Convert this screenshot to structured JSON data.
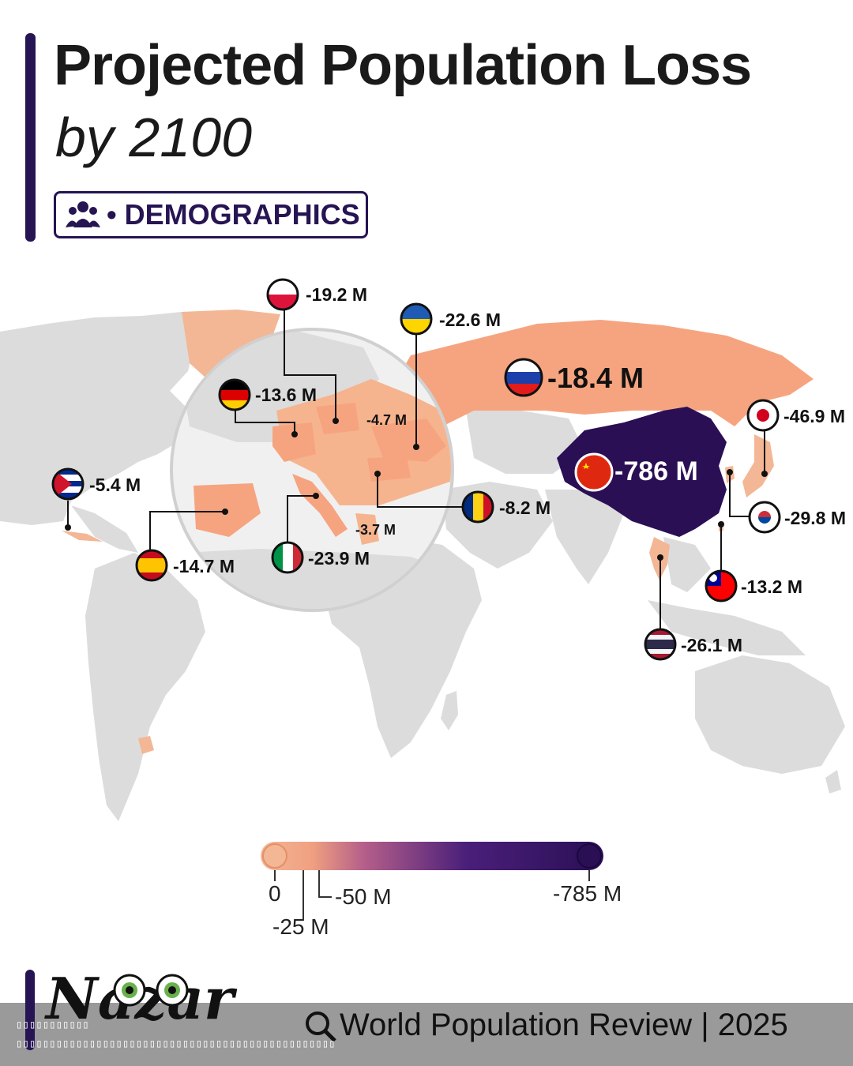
{
  "header": {
    "title": "Projected Population Loss",
    "subtitle": "by 2100",
    "tag": "• DEMOGRAPHICS"
  },
  "colors": {
    "accent": "#261453",
    "light": "#f3b795",
    "mid": "#f0a080",
    "dark": "#2a0f55",
    "land": "#dcdcdc"
  },
  "map_data": {
    "countries": [
      {
        "name": "Poland",
        "value": "-19.2 M",
        "flag": "poland-flag-icon"
      },
      {
        "name": "Ukraine",
        "value": "-22.6 M",
        "flag": "ukraine-flag-icon"
      },
      {
        "name": "Germany",
        "value": "-13.6 M",
        "flag": "germany-flag-icon"
      },
      {
        "name": "Russia",
        "value": "-18.4 M",
        "flag": "russia-flag-icon"
      },
      {
        "name": "Japan",
        "value": "-46.9 M",
        "flag": "japan-flag-icon"
      },
      {
        "name": "China",
        "value": "-786 M",
        "flag": "china-flag-icon"
      },
      {
        "name": "Cuba",
        "value": "-5.4 M",
        "flag": "cuba-flag-icon"
      },
      {
        "name": "Romania",
        "value": "-8.2 M",
        "flag": "romania-flag-icon"
      },
      {
        "name": "South Korea",
        "value": "-29.8 M",
        "flag": "south-korea-flag-icon"
      },
      {
        "name": "Spain",
        "value": "-14.7 M",
        "flag": "spain-flag-icon"
      },
      {
        "name": "Italy",
        "value": "-23.9 M",
        "flag": "italy-flag-icon"
      },
      {
        "name": "Taiwan",
        "value": "-13.2 M",
        "flag": "taiwan-flag-icon"
      },
      {
        "name": "Thailand",
        "value": "-26.1 M",
        "flag": "thailand-flag-icon"
      }
    ],
    "unflagged": [
      "-4.7 M",
      "-3.7 M"
    ]
  },
  "legend": {
    "ticks": [
      "0",
      "-25 M",
      "-50 M",
      "-785 M"
    ]
  },
  "footer": {
    "brand": "Nazar",
    "source": "World Population Review | 2025",
    "junk1": "▯▯▯▯▯▯▯▯▯▯▯",
    "junk2": "▯▯▯▯▯▯▯▯▯▯▯▯▯▯▯▯▯▯▯▯▯▯▯▯▯▯▯▯▯▯▯▯▯▯▯▯▯▯▯▯▯▯▯▯▯▯▯▯"
  }
}
